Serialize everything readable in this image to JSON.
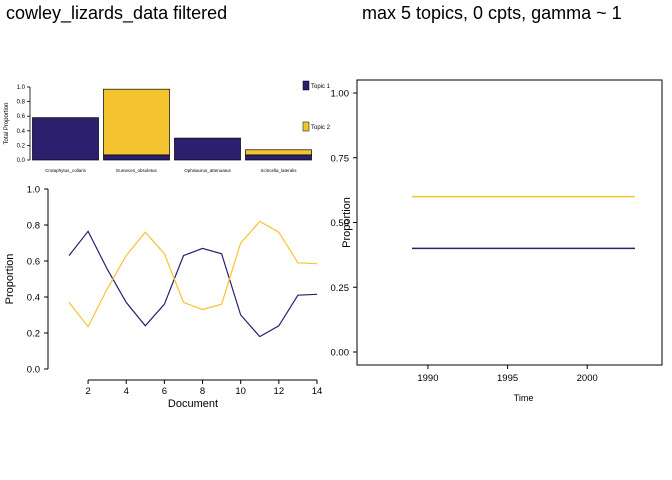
{
  "titles": {
    "left": "cowley_lizards_data filtered",
    "right": "max 5 topics, 0 cpts, gamma ~ 1"
  },
  "colors": {
    "topic1": "#2b1f6e",
    "topic2": "#f4c430"
  },
  "chart_data": [
    {
      "type": "bar",
      "stacked": true,
      "ylabel": "Total Proportion",
      "ylim": [
        0,
        1
      ],
      "yticks": [
        "0.0",
        "0.2",
        "0.4",
        "0.6",
        "0.8",
        "1.0"
      ],
      "categories": [
        "Crotaphytus_collaris",
        "Eumeces_obsoletus",
        "Ophisaurus_attenuatus",
        "Scincella_lateralis"
      ],
      "series": [
        {
          "name": "Topic 1",
          "values": [
            0.58,
            0.07,
            0.3,
            0.07
          ]
        },
        {
          "name": "Topic 2",
          "values": [
            0.0,
            0.9,
            0.0,
            0.07
          ]
        }
      ],
      "legend": "right"
    },
    {
      "type": "line",
      "xlabel": "Document",
      "ylabel": "Proportion",
      "ylim": [
        0,
        1
      ],
      "xlim": [
        1,
        14
      ],
      "yticks": [
        "0.0",
        "0.2",
        "0.4",
        "0.6",
        "0.8",
        "1.0"
      ],
      "xticks": [
        "2",
        "4",
        "6",
        "8",
        "10",
        "12",
        "14"
      ],
      "x": [
        1,
        2,
        3,
        4,
        5,
        6,
        7,
        8,
        9,
        10,
        11,
        12,
        13,
        14
      ],
      "series": [
        {
          "values": [
            0.63,
            0.765,
            0.555,
            0.37,
            0.24,
            0.36,
            0.63,
            0.67,
            0.64,
            0.3,
            0.18,
            0.24,
            0.41,
            0.415
          ]
        },
        {
          "values": [
            0.37,
            0.235,
            0.445,
            0.63,
            0.76,
            0.64,
            0.37,
            0.33,
            0.36,
            0.7,
            0.82,
            0.76,
            0.59,
            0.585
          ]
        }
      ]
    },
    {
      "type": "line",
      "xlabel": "Time",
      "ylabel": "Proportion",
      "ylim": [
        0,
        1
      ],
      "yticks": [
        "0.00",
        "0.25",
        "0.50",
        "0.75",
        "1.00"
      ],
      "xticks": [
        "1990",
        "1995",
        "2000"
      ],
      "xlim": [
        1989,
        2003
      ],
      "series": [
        {
          "x": [
            1989,
            2003
          ],
          "values": [
            0.4,
            0.4
          ]
        },
        {
          "x": [
            1989,
            2003
          ],
          "values": [
            0.6,
            0.6
          ]
        }
      ]
    }
  ]
}
